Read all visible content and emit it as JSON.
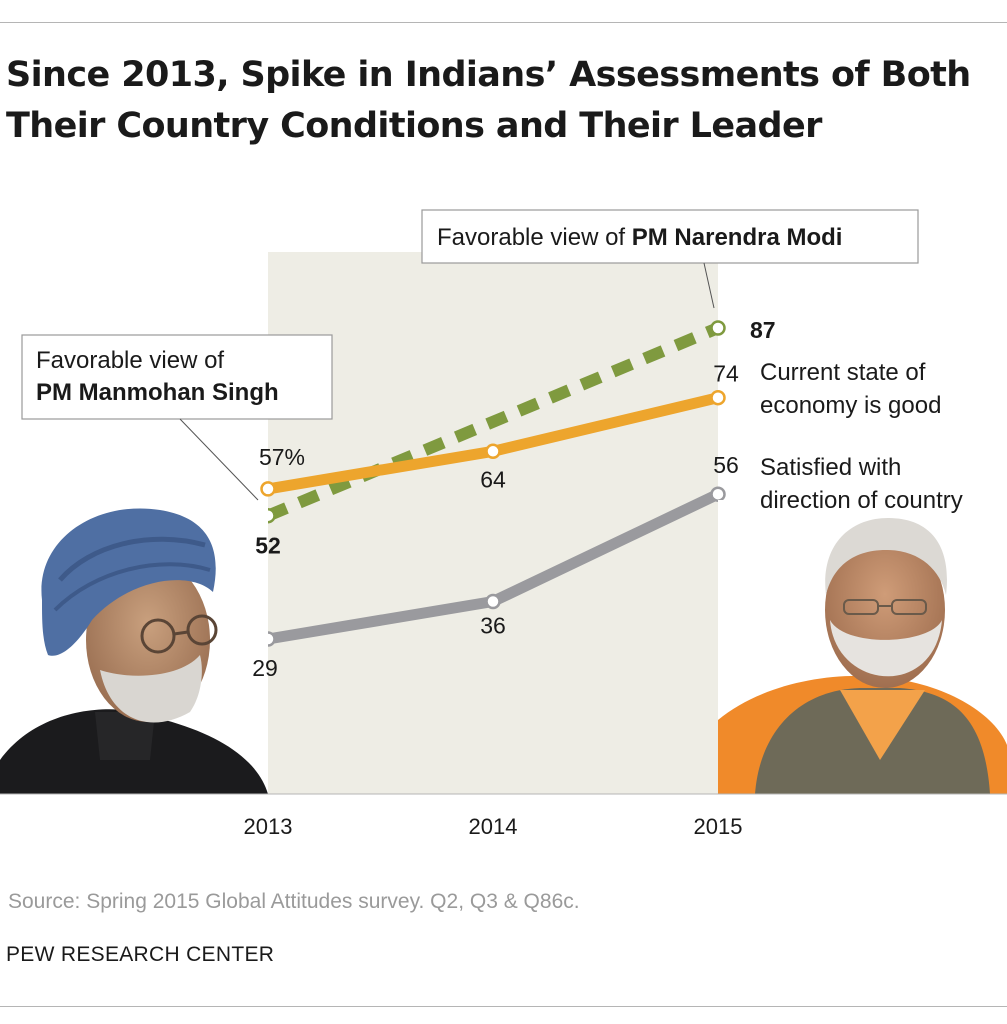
{
  "title": "Since 2013, Spike in Indians’ Assessments of Both Their Country Conditions and Their Leader",
  "source": "Source:  Spring 2015 Global Attitudes survey. Q2, Q3 & Q86c.",
  "organization": "PEW RESEARCH CENTER",
  "callouts": {
    "singh": {
      "line1": "Favorable view of",
      "line2": "PM Manmohan Singh"
    },
    "modi": {
      "prefix": "Favorable view of ",
      "bold": "PM Narendra Modi"
    }
  },
  "series_labels": {
    "economy": [
      "Current state of",
      "economy is good"
    ],
    "direction": [
      "Satisfied with",
      "direction of country"
    ]
  },
  "colors": {
    "leader": "#7f9a3f",
    "economy": "#eda52d",
    "direction": "#9a9a9e",
    "shade": "#eeede5"
  },
  "photos": {
    "left": "Manmohan Singh portrait",
    "right": "Narendra Modi portrait"
  },
  "chart_data": {
    "type": "line",
    "x": [
      2013,
      2014,
      2015
    ],
    "ylim": [
      0,
      100
    ],
    "shaded_region": [
      2013,
      2015
    ],
    "series": [
      {
        "key": "leader",
        "name": "Favorable view of PM",
        "values": [
          52,
          null,
          87
        ],
        "labels": [
          "52",
          "",
          "87"
        ],
        "dashed": true
      },
      {
        "key": "economy",
        "name": "Current state of economy is good",
        "values": [
          57,
          64,
          74
        ],
        "labels": [
          "57%",
          "64",
          "74"
        ]
      },
      {
        "key": "direction",
        "name": "Satisfied with direction of country",
        "values": [
          29,
          36,
          56
        ],
        "labels": [
          "29",
          "36",
          "56"
        ]
      }
    ]
  }
}
